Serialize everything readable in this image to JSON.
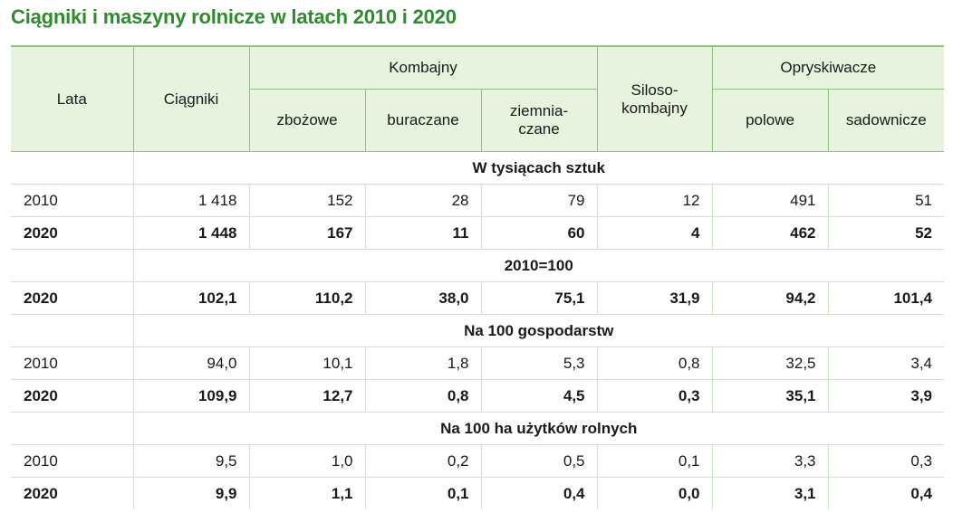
{
  "title": "Ciągniki i maszyny rolnicze w latach 2010 i 2020",
  "colors": {
    "title": "#2e8b2e",
    "header_bg": "#e7f3df",
    "border": "#8cc47a"
  },
  "headers": {
    "lata": "Lata",
    "ciagniki": "Ciągniki",
    "kombajny": "Kombajny",
    "zbozowe": "zbożowe",
    "buraczane": "buraczane",
    "ziemniaczane_1": "ziemnia-",
    "ziemniaczane_2": "czane",
    "silosokombajny_1": "Siloso-",
    "silosokombajny_2": "kombajny",
    "opryskiwacze": "Opryskiwacze",
    "polowe": "polowe",
    "sadownicze": "sadownicze"
  },
  "sections": [
    {
      "label": "W tysiącach sztuk",
      "rows": [
        {
          "year": "2010",
          "bold": false,
          "values": [
            "1 418",
            "152",
            "28",
            "79",
            "12",
            "491",
            "51"
          ]
        },
        {
          "year": "2020",
          "bold": true,
          "values": [
            "1 448",
            "167",
            "11",
            "60",
            "4",
            "462",
            "52"
          ]
        }
      ]
    },
    {
      "label": "2010=100",
      "rows": [
        {
          "year": "2020",
          "bold": true,
          "values": [
            "102,1",
            "110,2",
            "38,0",
            "75,1",
            "31,9",
            "94,2",
            "101,4"
          ]
        }
      ]
    },
    {
      "label": "Na 100 gospodarstw",
      "rows": [
        {
          "year": "2010",
          "bold": false,
          "values": [
            "94,0",
            "10,1",
            "1,8",
            "5,3",
            "0,8",
            "32,5",
            "3,4"
          ]
        },
        {
          "year": "2020",
          "bold": true,
          "values": [
            "109,9",
            "12,7",
            "0,8",
            "4,5",
            "0,3",
            "35,1",
            "3,9"
          ]
        }
      ]
    },
    {
      "label": "Na 100 ha użytków rolnych",
      "rows": [
        {
          "year": "2010",
          "bold": false,
          "values": [
            "9,5",
            "1,0",
            "0,2",
            "0,5",
            "0,1",
            "3,3",
            "0,3"
          ]
        },
        {
          "year": "2020",
          "bold": true,
          "values": [
            "9,9",
            "1,1",
            "0,1",
            "0,4",
            "0,0",
            "3,1",
            "0,4"
          ]
        }
      ]
    }
  ]
}
